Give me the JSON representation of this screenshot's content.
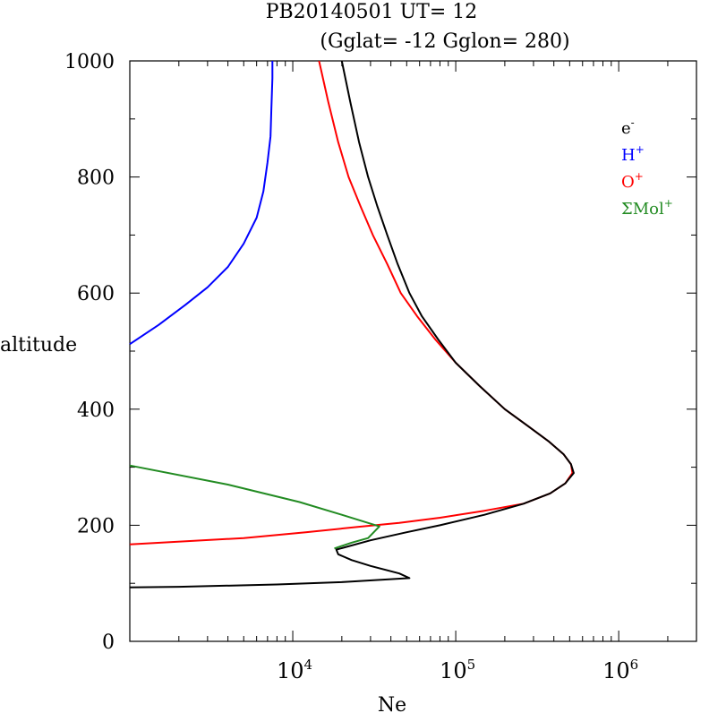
{
  "chart_data": {
    "type": "line",
    "title_line1": "PB20140501   UT=  12",
    "title_line2": "(Gglat= -12   Gglon=  280)",
    "xlabel": "Ne",
    "ylabel": "altitude",
    "xscale": "log",
    "xlim": [
      1000,
      3000000
    ],
    "ylim": [
      0,
      1000
    ],
    "x_tick_labels": [
      {
        "base": "10",
        "exp": "4",
        "value": 10000
      },
      {
        "base": "10",
        "exp": "5",
        "value": 100000
      },
      {
        "base": "10",
        "exp": "6",
        "value": 1000000
      }
    ],
    "y_ticks": [
      0,
      200,
      400,
      600,
      800,
      1000
    ],
    "y_tick_labels": [
      "0",
      "200",
      "400",
      "600",
      "800",
      "1000"
    ],
    "legend_placement": "top-right",
    "legend": [
      {
        "base": "e",
        "sup": "-",
        "color": "#000000"
      },
      {
        "base": "H",
        "sup": "+",
        "color": "#0000ff"
      },
      {
        "base": "O",
        "sup": "+",
        "color": "#ff0000"
      },
      {
        "base": "ΣMol",
        "sup": "+",
        "color": "#228b22"
      }
    ],
    "series": [
      {
        "color": "#0000ff",
        "points": [
          [
            1000,
            512
          ],
          [
            1500,
            545
          ],
          [
            2200,
            580
          ],
          [
            3000,
            610
          ],
          [
            4000,
            645
          ],
          [
            5000,
            685
          ],
          [
            6000,
            730
          ],
          [
            6600,
            775
          ],
          [
            7000,
            825
          ],
          [
            7300,
            870
          ],
          [
            7400,
            920
          ],
          [
            7500,
            970
          ],
          [
            7500,
            1000
          ]
        ]
      },
      {
        "color": "#ff0000",
        "points": [
          [
            1000,
            167
          ],
          [
            5000,
            178
          ],
          [
            12000,
            188
          ],
          [
            25000,
            197
          ],
          [
            45000,
            204
          ],
          [
            80000,
            213
          ],
          [
            150000,
            225
          ],
          [
            260000,
            237
          ],
          [
            380000,
            255
          ],
          [
            470000,
            272
          ],
          [
            520000,
            290
          ],
          [
            510000,
            305
          ],
          [
            460000,
            322
          ],
          [
            370000,
            345
          ],
          [
            280000,
            370
          ],
          [
            200000,
            400
          ],
          [
            140000,
            440
          ],
          [
            100000,
            480
          ],
          [
            75000,
            520
          ],
          [
            58000,
            560
          ],
          [
            46000,
            600
          ],
          [
            38000,
            650
          ],
          [
            31000,
            700
          ],
          [
            26000,
            750
          ],
          [
            22000,
            800
          ],
          [
            19000,
            860
          ],
          [
            16500,
            930
          ],
          [
            14500,
            1000
          ]
        ]
      },
      {
        "color": "#228b22",
        "points": [
          [
            1000,
            303
          ],
          [
            4000,
            270
          ],
          [
            11000,
            240
          ],
          [
            20000,
            218
          ],
          [
            34000,
            198
          ],
          [
            29000,
            178
          ],
          [
            23000,
            170
          ],
          [
            18000,
            160
          ]
        ]
      },
      {
        "color": "#000000",
        "points": [
          [
            1000,
            93
          ],
          [
            2000,
            94
          ],
          [
            8000,
            98
          ],
          [
            20000,
            102
          ],
          [
            52000,
            109
          ],
          [
            45000,
            117
          ],
          [
            30000,
            130
          ],
          [
            23000,
            140
          ],
          [
            19000,
            150
          ],
          [
            18500,
            158
          ],
          [
            30000,
            174
          ],
          [
            50000,
            188
          ],
          [
            80000,
            200
          ],
          [
            150000,
            218
          ],
          [
            260000,
            237
          ],
          [
            380000,
            255
          ],
          [
            470000,
            272
          ],
          [
            530000,
            290
          ],
          [
            510000,
            305
          ],
          [
            460000,
            322
          ],
          [
            370000,
            345
          ],
          [
            280000,
            370
          ],
          [
            200000,
            400
          ],
          [
            140000,
            440
          ],
          [
            100000,
            480
          ],
          [
            78000,
            520
          ],
          [
            62000,
            560
          ],
          [
            52000,
            600
          ],
          [
            44000,
            650
          ],
          [
            38000,
            700
          ],
          [
            33000,
            750
          ],
          [
            29000,
            800
          ],
          [
            25500,
            860
          ],
          [
            22500,
            930
          ],
          [
            20000,
            1000
          ]
        ]
      }
    ]
  }
}
